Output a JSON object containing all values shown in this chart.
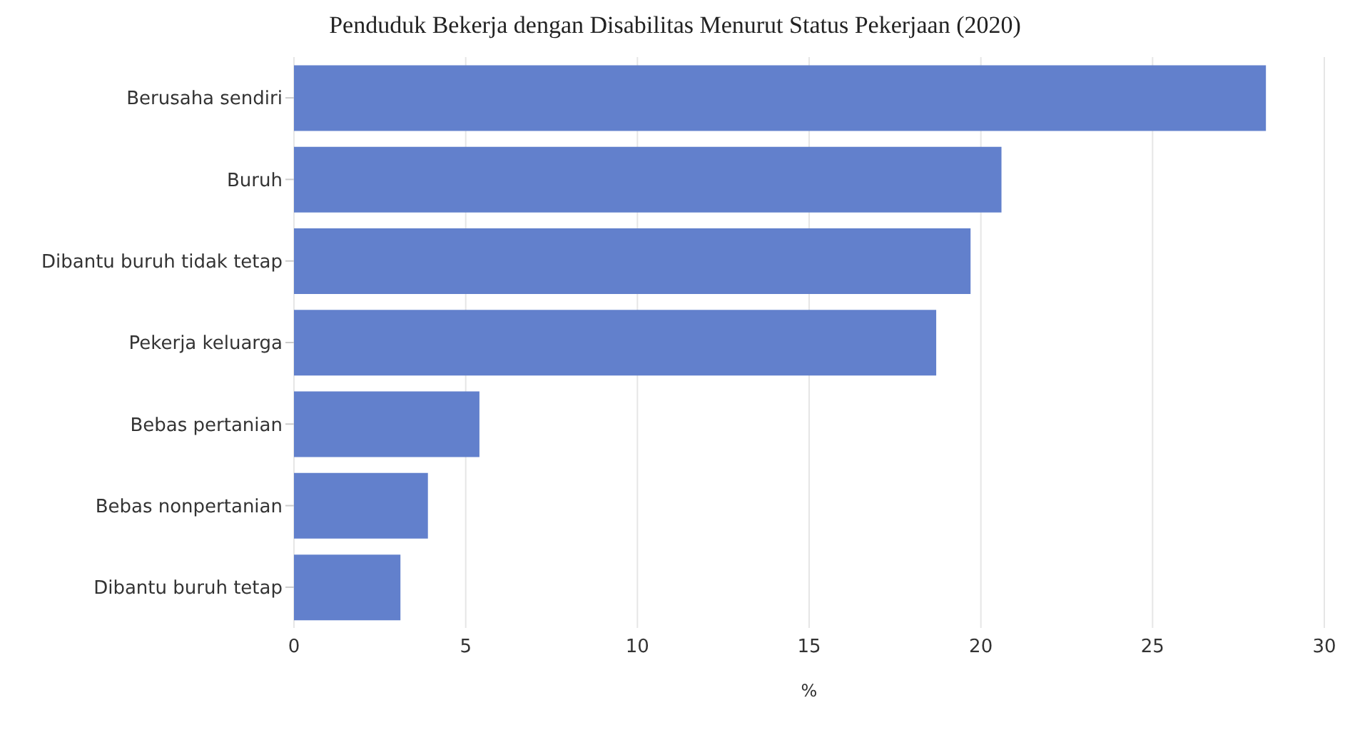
{
  "chart_data": {
    "type": "bar",
    "orientation": "horizontal",
    "title": "Penduduk Bekerja dengan Disabilitas Menurut Status Pekerjaan (2020)",
    "xlabel": "%",
    "categories": [
      "Berusaha sendiri",
      "Buruh",
      "Dibantu buruh tidak tetap",
      "Pekerja keluarga",
      "Bebas pertanian",
      "Bebas nonpertanian",
      "Dibantu buruh tetap"
    ],
    "values": [
      28.3,
      20.6,
      19.7,
      18.7,
      5.4,
      3.9,
      3.1
    ],
    "color": "#6280cc",
    "xlim": [
      0,
      30
    ],
    "xticks": [
      0,
      5,
      10,
      15,
      20,
      25,
      30
    ],
    "grid": "x",
    "legend": false
  }
}
